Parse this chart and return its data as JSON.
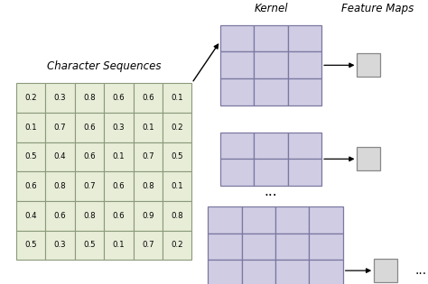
{
  "char_seq_label": "Character Sequences",
  "kernel_label": "Kernel",
  "feature_maps_label": "Feature Maps",
  "matrix_data": [
    [
      "0.2",
      "0.3",
      "0.8",
      "0.6",
      "0.6",
      "0.1"
    ],
    [
      "0.1",
      "0.7",
      "0.6",
      "0.3",
      "0.1",
      "0.2"
    ],
    [
      "0.5",
      "0.4",
      "0.6",
      "0.1",
      "0.7",
      "0.5"
    ],
    [
      "0.6",
      "0.8",
      "0.7",
      "0.6",
      "0.8",
      "0.1"
    ],
    [
      "0.4",
      "0.6",
      "0.8",
      "0.6",
      "0.9",
      "0.8"
    ],
    [
      "0.5",
      "0.3",
      "0.5",
      "0.1",
      "0.7",
      "0.2"
    ]
  ],
  "matrix_bg": "#e8edd8",
  "matrix_border": "#8a9a7a",
  "kernel_bg": "#d0cce4",
  "kernel_border": "#7a78a0",
  "feature_bg": "#d8d8d8",
  "feature_border": "#888888",
  "bg_color": "#ffffff",
  "dots_label": "...",
  "k1_rows": 3,
  "k1_cols": 3,
  "k2_rows": 2,
  "k2_cols": 3,
  "k3_rows": 4,
  "k3_cols": 4
}
